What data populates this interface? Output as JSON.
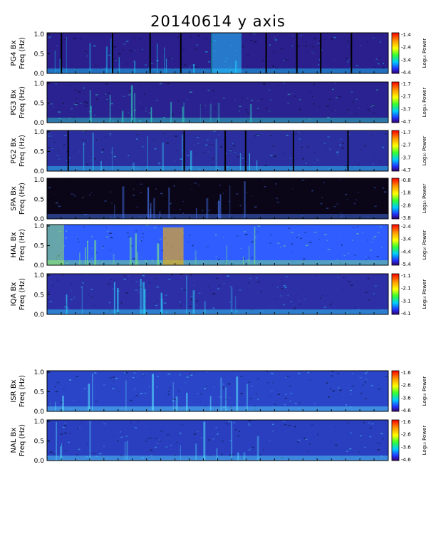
{
  "chart_data": {
    "type": "heatmap",
    "title": "20140614 y axis",
    "ylim": [
      0.0,
      1.0
    ],
    "yticks": [
      "0.0",
      "0.5",
      "1.0"
    ],
    "colorbar_label": "Log₁₀ Power",
    "panels": [
      {
        "station": "PG4 Bx",
        "ylabel_unit": "Freq (Hz)",
        "cbar_ticks": [
          "-1.4",
          "-2.4",
          "-3.4",
          "-4.4"
        ],
        "colors": {
          "bg": "#2a1f8c",
          "hot": "#19d4ff"
        }
      },
      {
        "station": "PG3 Bx",
        "ylabel_unit": "Freq (Hz)",
        "cbar_ticks": [
          "-1.7",
          "-2.7",
          "-3.7",
          "-4.7"
        ],
        "colors": {
          "bg": "#2a2290",
          "hot": "#2fe0c8"
        }
      },
      {
        "station": "PG2 Bx",
        "ylabel_unit": "Freq (Hz)",
        "cbar_ticks": [
          "-1.7",
          "-2.7",
          "-3.7",
          "-4.7"
        ],
        "colors": {
          "bg": "#2b2e9e",
          "hot": "#2fd6ff"
        }
      },
      {
        "station": "SPA Bx",
        "ylabel_unit": "Freq (Hz)",
        "cbar_ticks": [
          "-0.8",
          "-1.8",
          "-2.8",
          "-3.8"
        ],
        "colors": {
          "bg": "#0a0618",
          "hot": "#4a7cff"
        }
      },
      {
        "station": "HAL Bx",
        "ylabel_unit": "Freq (Hz)",
        "cbar_ticks": [
          "-2.4",
          "-3.4",
          "-4.4",
          "-5.4"
        ],
        "colors": {
          "bg": "#2f5dff",
          "hot": "#7ef07a"
        }
      },
      {
        "station": "IQA Bx",
        "ylabel_unit": "Freq (Hz)",
        "cbar_ticks": [
          "-1.1",
          "-2.1",
          "-3.1",
          "-4.1"
        ],
        "colors": {
          "bg": "#2d2fa6",
          "hot": "#2ee0ff"
        }
      },
      {
        "station": "ISR Bx",
        "ylabel_unit": "Freq (Hz)",
        "cbar_ticks": [
          "-1.6",
          "-2.6",
          "-3.6",
          "-4.6"
        ],
        "colors": {
          "bg": "#2a45c8",
          "hot": "#58e7ff"
        }
      },
      {
        "station": "NAL Bx",
        "ylabel_unit": "Freq (Hz)",
        "cbar_ticks": [
          "-1.6",
          "-2.6",
          "-3.6",
          "-4.6"
        ],
        "colors": {
          "bg": "#2a3fc0",
          "hot": "#4fe2ff"
        }
      }
    ]
  }
}
